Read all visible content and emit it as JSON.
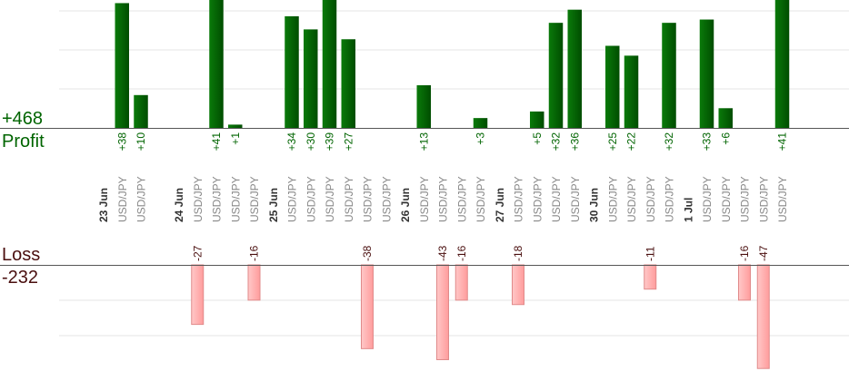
{
  "summary": {
    "profit_total": "+468",
    "profit_label": "Profit",
    "loss_label": "Loss",
    "loss_total": "-232"
  },
  "colors": {
    "profit": "#006400",
    "profit_dark": "#004d00",
    "loss_fill": "#ffb3b3",
    "loss_stroke": "#e08a8a",
    "loss_text": "#4a0f0f",
    "date_text": "#333333",
    "pair_text": "#888888",
    "grid": "#e6e6e6",
    "axis": "#555555"
  },
  "chart_data": {
    "type": "bar",
    "note_axis": "profit bars above the upper baseline, loss bars below the lower baseline; profit scale clipped at top",
    "profit_ylim": [
      0,
      45
    ],
    "loss_ylim": [
      0,
      48
    ],
    "dates": [
      {
        "label": "23 Jun",
        "slot": 0
      },
      {
        "label": "24 Jun",
        "slot": 4
      },
      {
        "label": "25 Jun",
        "slot": 9
      },
      {
        "label": "26 Jun",
        "slot": 16
      },
      {
        "label": "27 Jun",
        "slot": 21
      },
      {
        "label": "30 Jun",
        "slot": 26
      },
      {
        "label": "1 Jul",
        "slot": 31
      }
    ],
    "trades": [
      {
        "slot": 1,
        "pair": "USD/JPY",
        "profit": 38,
        "profit_label": "+38"
      },
      {
        "slot": 2,
        "pair": "USD/JPY",
        "profit": 10,
        "profit_label": "+10"
      },
      {
        "slot": 5,
        "pair": "USD/JPY",
        "loss": 27,
        "loss_label": "-27"
      },
      {
        "slot": 6,
        "pair": "USD/JPY",
        "profit": 41,
        "profit_label": "+41"
      },
      {
        "slot": 7,
        "pair": "USD/JPY",
        "profit": 1,
        "profit_label": "+1"
      },
      {
        "slot": 8,
        "pair": "USD/JPY",
        "loss": 16,
        "loss_label": "-16"
      },
      {
        "slot": 10,
        "pair": "USD/JPY",
        "profit": 34,
        "profit_label": "+34"
      },
      {
        "slot": 11,
        "pair": "USD/JPY",
        "profit": 30,
        "profit_label": "+30"
      },
      {
        "slot": 12,
        "pair": "USD/JPY",
        "profit": 39,
        "profit_label": "+39"
      },
      {
        "slot": 13,
        "pair": "USD/JPY",
        "profit": 27,
        "profit_label": "+27"
      },
      {
        "slot": 14,
        "pair": "USD/JPY",
        "loss": 38,
        "loss_label": "-38"
      },
      {
        "slot": 15,
        "pair": "USD/JPY"
      },
      {
        "slot": 17,
        "pair": "USD/JPY",
        "profit": 13,
        "profit_label": "+13"
      },
      {
        "slot": 18,
        "pair": "USD/JPY",
        "loss": 43,
        "loss_label": "-43"
      },
      {
        "slot": 19,
        "pair": "USD/JPY",
        "loss": 16,
        "loss_label": "-16"
      },
      {
        "slot": 20,
        "pair": "USD/JPY",
        "profit": 3,
        "profit_label": "+3"
      },
      {
        "slot": 22,
        "pair": "USD/JPY",
        "loss": 18,
        "loss_label": "-18"
      },
      {
        "slot": 23,
        "pair": "USD/JPY",
        "profit": 5,
        "profit_label": "+5"
      },
      {
        "slot": 24,
        "pair": "USD/JPY",
        "profit": 32,
        "profit_label": "+32"
      },
      {
        "slot": 25,
        "pair": "USD/JPY",
        "profit": 36,
        "profit_label": "+36"
      },
      {
        "slot": 27,
        "pair": "USD/JPY",
        "profit": 25,
        "profit_label": "+25"
      },
      {
        "slot": 28,
        "pair": "USD/JPY",
        "profit": 22,
        "profit_label": "+22"
      },
      {
        "slot": 29,
        "pair": "USD/JPY",
        "loss": 11,
        "loss_label": "-11"
      },
      {
        "slot": 30,
        "pair": "USD/JPY",
        "profit": 32,
        "profit_label": "+32"
      },
      {
        "slot": 32,
        "pair": "USD/JPY",
        "profit": 33,
        "profit_label": "+33"
      },
      {
        "slot": 33,
        "pair": "USD/JPY",
        "profit": 6,
        "profit_label": "+6"
      },
      {
        "slot": 34,
        "pair": "USD/JPY",
        "loss": 16,
        "loss_label": "-16"
      },
      {
        "slot": 35,
        "pair": "USD/JPY",
        "loss": 47,
        "loss_label": "-47"
      },
      {
        "slot": 36,
        "pair": "USD/JPY",
        "profit": 41,
        "profit_label": "+41"
      }
    ]
  }
}
